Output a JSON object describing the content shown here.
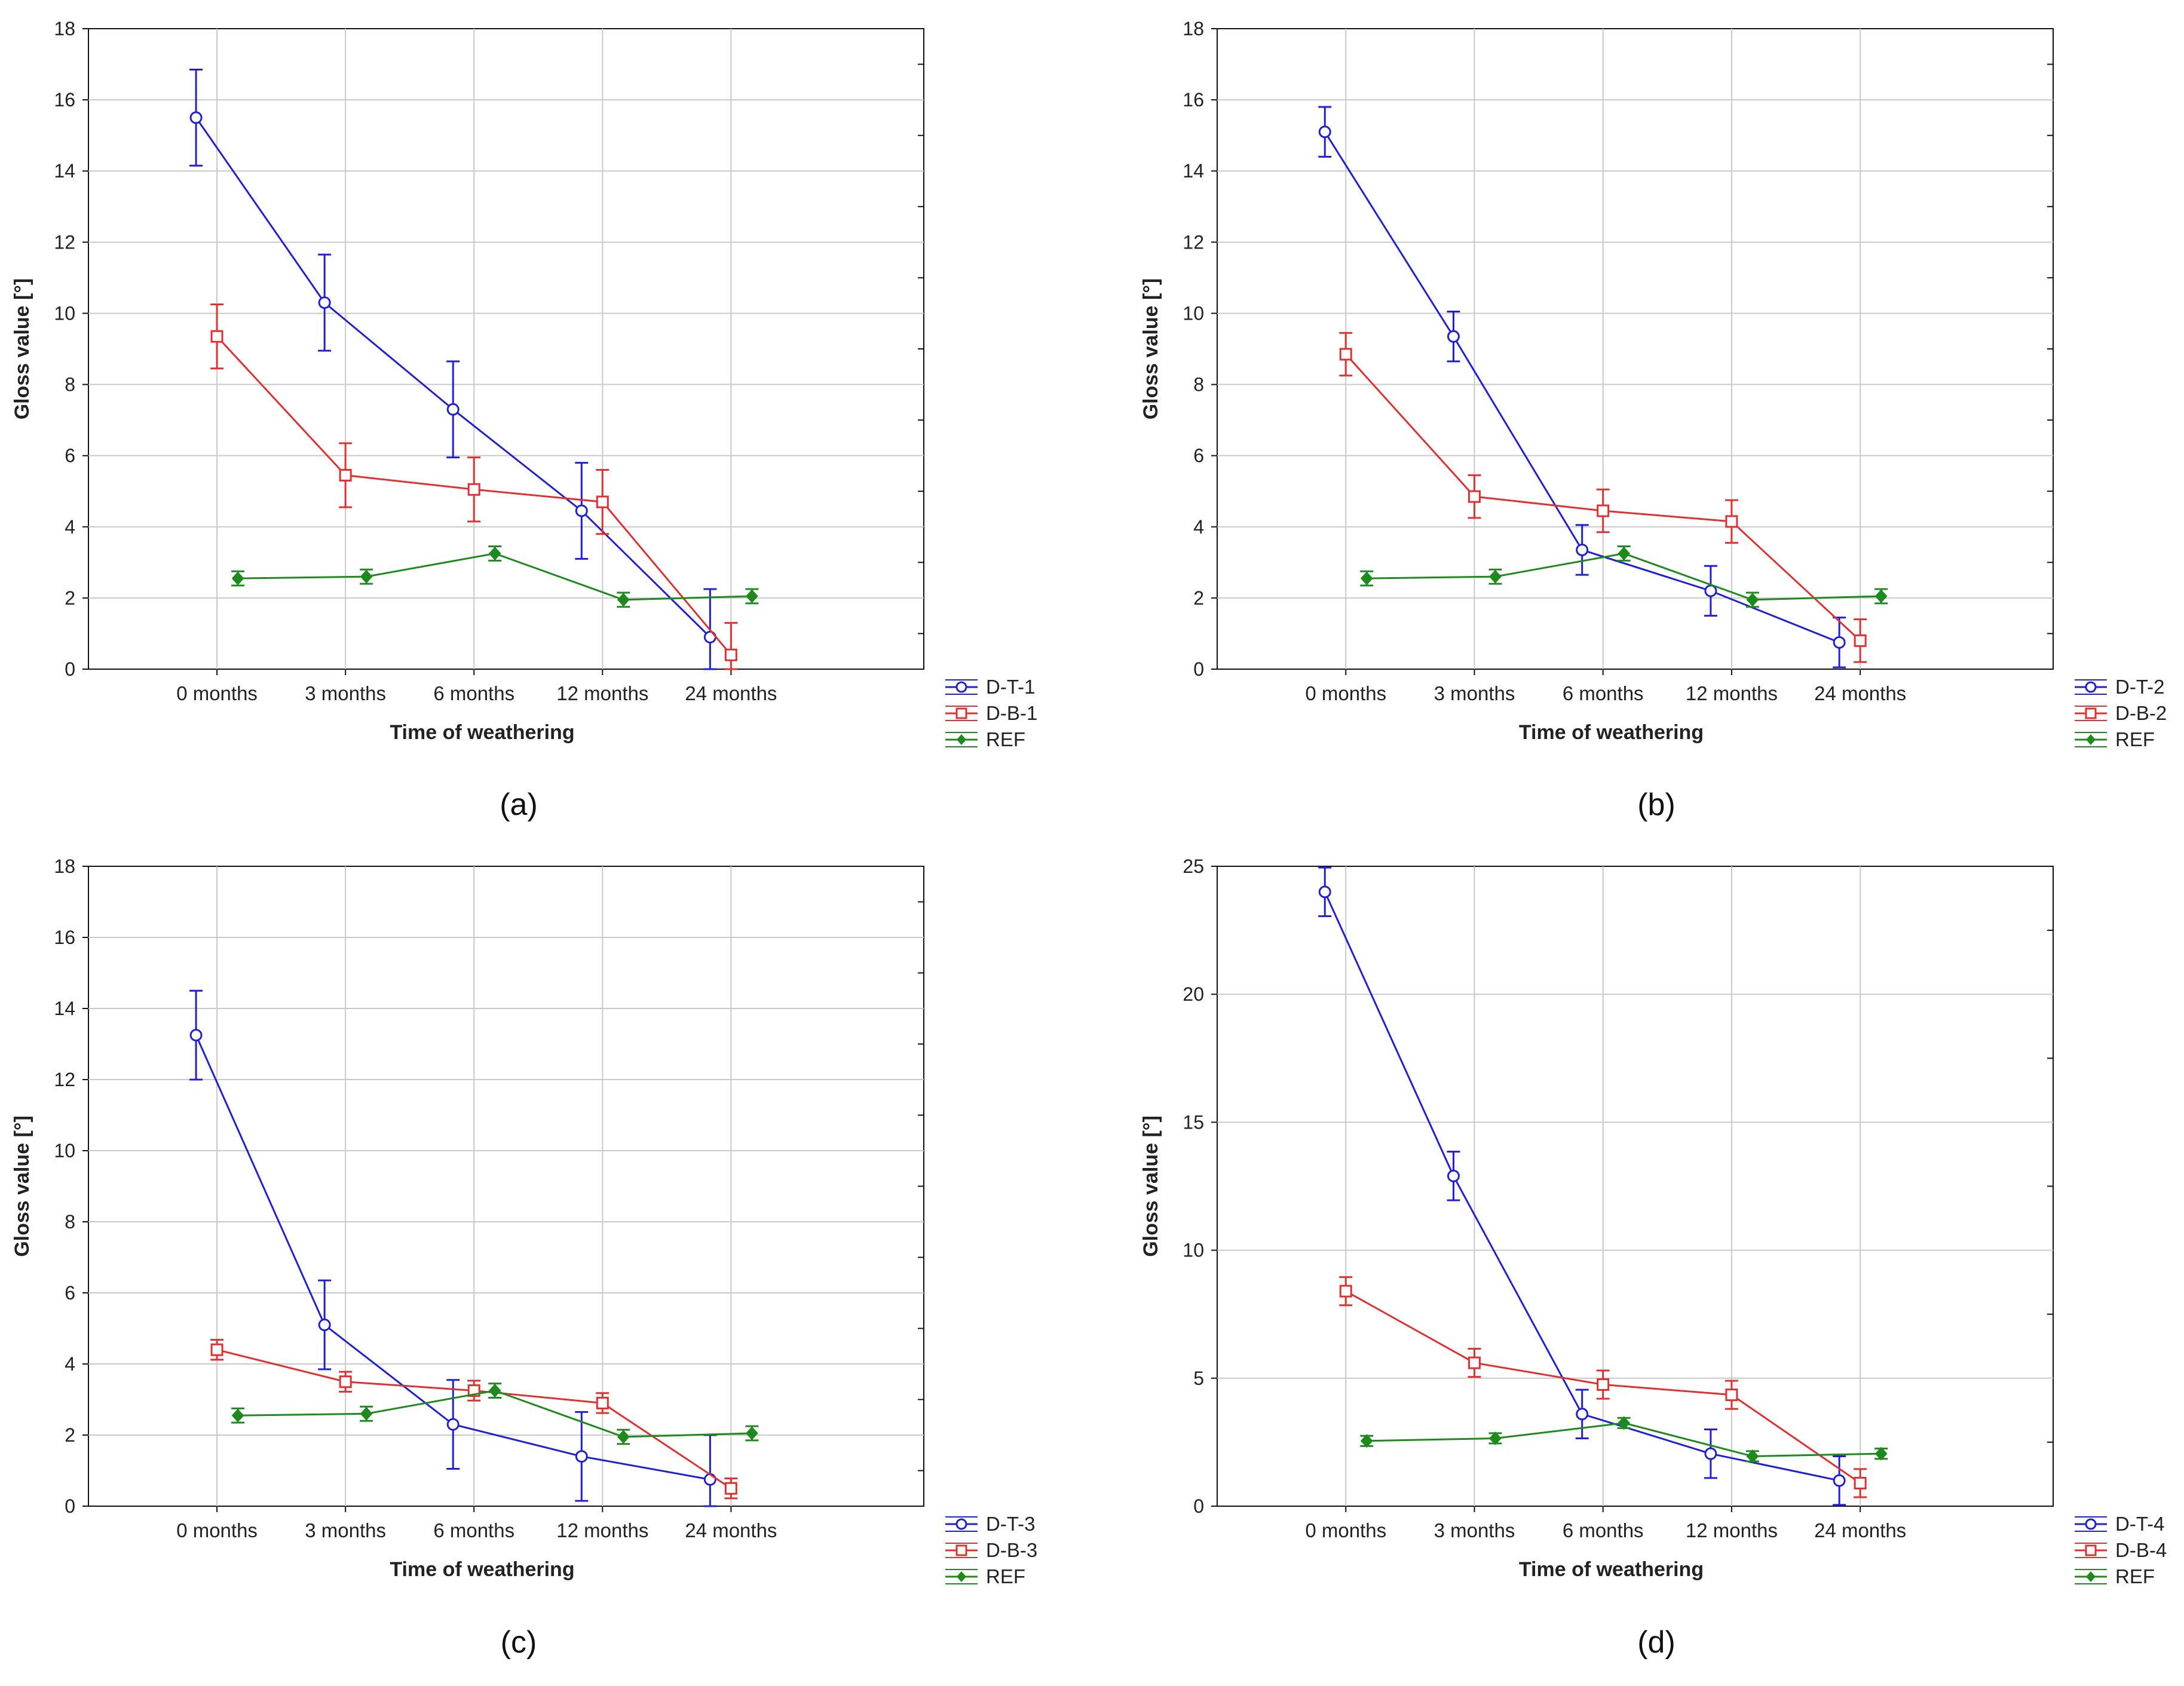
{
  "chart_data": [
    {
      "panel_label": "(a)",
      "letter": "a",
      "type": "line",
      "xlabel": "Time of weathering",
      "ylabel": "Gloss value [°]",
      "categories": [
        "0 months",
        "3 months",
        "6 months",
        "12 months",
        "24 months"
      ],
      "ylim": [
        0,
        18
      ],
      "yticks": [
        0,
        2,
        4,
        6,
        8,
        10,
        12,
        14,
        16,
        18
      ],
      "grid": true,
      "legend_position": "bottom-right, outside plot",
      "series": [
        {
          "name": "D-T-1",
          "color": "#1f1fd6",
          "marker": "circle",
          "values": [
            15.5,
            10.3,
            7.3,
            4.45,
            0.9
          ],
          "errors": [
            1.35,
            1.35,
            1.35,
            1.35,
            1.35
          ]
        },
        {
          "name": "D-B-1",
          "color": "#e03030",
          "marker": "square",
          "values": [
            9.35,
            5.45,
            5.05,
            4.7,
            0.4
          ],
          "errors": [
            0.9,
            0.9,
            0.9,
            0.9,
            0.9
          ]
        },
        {
          "name": "REF",
          "color": "#1e8a1e",
          "marker": "diamond",
          "values": [
            2.55,
            2.6,
            3.25,
            1.95,
            2.05
          ],
          "errors": [
            0.2,
            0.2,
            0.2,
            0.2,
            0.2
          ]
        }
      ]
    },
    {
      "panel_label": "(b)",
      "letter": "b",
      "type": "line",
      "xlabel": "Time of weathering",
      "ylabel": "Gloss value [°]",
      "categories": [
        "0 months",
        "3 months",
        "6 months",
        "12 months",
        "24 months"
      ],
      "ylim": [
        0,
        18
      ],
      "yticks": [
        0,
        2,
        4,
        6,
        8,
        10,
        12,
        14,
        16,
        18
      ],
      "grid": true,
      "legend_position": "bottom-right, outside plot",
      "series": [
        {
          "name": "D-T-2",
          "color": "#1f1fd6",
          "marker": "circle",
          "values": [
            15.1,
            9.35,
            3.35,
            2.2,
            0.75
          ],
          "errors": [
            0.7,
            0.7,
            0.7,
            0.7,
            0.7
          ]
        },
        {
          "name": "D-B-2",
          "color": "#e03030",
          "marker": "square",
          "values": [
            8.85,
            4.85,
            4.45,
            4.15,
            0.8
          ],
          "errors": [
            0.6,
            0.6,
            0.6,
            0.6,
            0.6
          ]
        },
        {
          "name": "REF",
          "color": "#1e8a1e",
          "marker": "diamond",
          "values": [
            2.55,
            2.6,
            3.25,
            1.95,
            2.05
          ],
          "errors": [
            0.2,
            0.2,
            0.2,
            0.2,
            0.2
          ]
        }
      ]
    },
    {
      "panel_label": "(c)",
      "letter": "c",
      "type": "line",
      "xlabel": "Time of weathering",
      "ylabel": "Gloss value [°]",
      "categories": [
        "0 months",
        "3 months",
        "6 months",
        "12 months",
        "24 months"
      ],
      "ylim": [
        0,
        18
      ],
      "yticks": [
        0,
        2,
        4,
        6,
        8,
        10,
        12,
        14,
        16,
        18
      ],
      "grid": true,
      "legend_position": "bottom-right, outside plot",
      "series": [
        {
          "name": "D-T-3",
          "color": "#1f1fd6",
          "marker": "circle",
          "values": [
            13.25,
            5.1,
            2.3,
            1.4,
            0.75
          ],
          "errors": [
            1.25,
            1.25,
            1.25,
            1.25,
            1.25
          ]
        },
        {
          "name": "D-B-3",
          "color": "#e03030",
          "marker": "square",
          "values": [
            4.4,
            3.5,
            3.25,
            2.9,
            0.5
          ],
          "errors": [
            0.28,
            0.28,
            0.28,
            0.28,
            0.28
          ]
        },
        {
          "name": "REF",
          "color": "#1e8a1e",
          "marker": "diamond",
          "values": [
            2.55,
            2.6,
            3.25,
            1.95,
            2.05
          ],
          "errors": [
            0.2,
            0.2,
            0.2,
            0.2,
            0.2
          ]
        }
      ]
    },
    {
      "panel_label": "(d)",
      "letter": "d",
      "type": "line",
      "xlabel": "Time of weathering",
      "ylabel": "Gloss value [°]",
      "categories": [
        "0 months",
        "3 months",
        "6 months",
        "12 months",
        "24 months"
      ],
      "ylim": [
        0,
        25
      ],
      "yticks": [
        0,
        5,
        10,
        15,
        20,
        25
      ],
      "grid": true,
      "legend_position": "bottom-right, outside plot",
      "series": [
        {
          "name": "D-T-4",
          "color": "#1f1fd6",
          "marker": "circle",
          "values": [
            24.0,
            12.9,
            3.6,
            2.05,
            1.0
          ],
          "errors": [
            0.95,
            0.95,
            0.95,
            0.95,
            0.95
          ]
        },
        {
          "name": "D-B-4",
          "color": "#e03030",
          "marker": "square",
          "values": [
            8.4,
            5.6,
            4.75,
            4.35,
            0.9
          ],
          "errors": [
            0.55,
            0.55,
            0.55,
            0.55,
            0.55
          ]
        },
        {
          "name": "REF",
          "color": "#1e8a1e",
          "marker": "diamond",
          "values": [
            2.55,
            2.65,
            3.25,
            1.95,
            2.05
          ],
          "errors": [
            0.2,
            0.2,
            0.2,
            0.2,
            0.2
          ]
        }
      ]
    }
  ]
}
